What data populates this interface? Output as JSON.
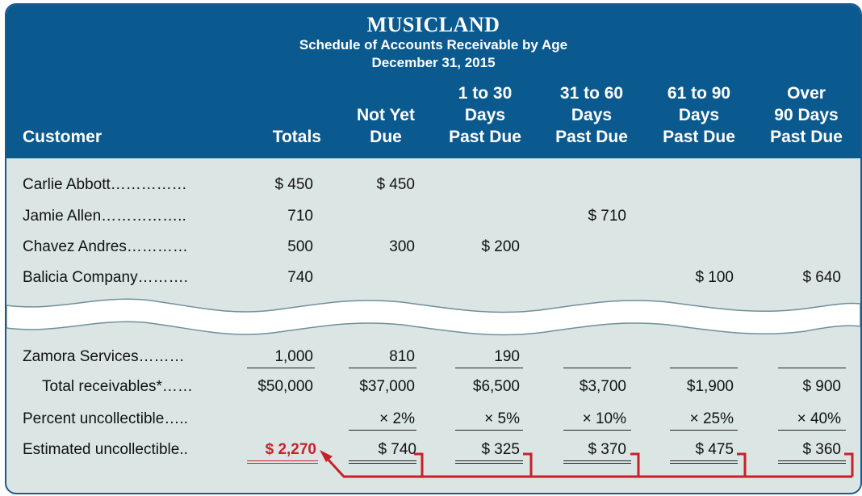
{
  "header": {
    "title": "MUSICLAND",
    "subtitle": "Schedule of Accounts Receivable by Age",
    "date": "December 31, 2015"
  },
  "columns": [
    {
      "id": "customer",
      "lines": [
        "Customer"
      ]
    },
    {
      "id": "totals",
      "lines": [
        "Totals"
      ]
    },
    {
      "id": "not_yet_due",
      "lines": [
        "Not Yet",
        "Due"
      ]
    },
    {
      "id": "d1_30",
      "lines": [
        "1 to 30",
        "Days",
        "Past Due"
      ]
    },
    {
      "id": "d31_60",
      "lines": [
        "31 to 60",
        "Days",
        "Past Due"
      ]
    },
    {
      "id": "d61_90",
      "lines": [
        "61 to 90",
        "Days",
        "Past Due"
      ]
    },
    {
      "id": "over90",
      "lines": [
        "Over",
        "90 Days",
        "Past Due"
      ]
    }
  ],
  "rows": [
    {
      "name": "Carlie Abbott……………",
      "totals": "$    450",
      "not_yet_due": "$    450",
      "d1_30": "",
      "d31_60": "",
      "d61_90": "",
      "over90": ""
    },
    {
      "name": "Jamie Allen……………..",
      "totals": "710",
      "not_yet_due": "",
      "d1_30": "",
      "d31_60": "$  710",
      "d61_90": "",
      "over90": ""
    },
    {
      "name": "Chavez Andres…………",
      "totals": "500",
      "not_yet_due": "300",
      "d1_30": "$  200",
      "d31_60": "",
      "d61_90": "",
      "over90": ""
    },
    {
      "name": "Balicia Company……….",
      "totals": "740",
      "not_yet_due": "",
      "d1_30": "",
      "d31_60": "",
      "d61_90": "$  100",
      "over90": "$  640"
    }
  ],
  "zamora": {
    "name": "Zamora Services………",
    "totals": "1,000",
    "not_yet_due": "810",
    "d1_30": "190"
  },
  "total_receivables": {
    "name": "Total receivables*……",
    "totals": "$50,000",
    "not_yet_due": "$37,000",
    "d1_30": "$6,500",
    "d31_60": "$3,700",
    "d61_90": "$1,900",
    "over90": "$  900"
  },
  "percent_uncollectible": {
    "name": "Percent uncollectible…..",
    "not_yet_due": "× 2%",
    "d1_30": "× 5%",
    "d31_60": "× 10%",
    "d61_90": "× 25%",
    "over90": "× 40%"
  },
  "estimated_uncollectible": {
    "name": "Estimated uncollectible..",
    "totals": "$  2,270",
    "not_yet_due": "$     740",
    "d1_30": "$   325",
    "d31_60": "$   370",
    "d61_90": "$   475",
    "over90": "$   360"
  },
  "colors": {
    "header_bg": "#0b5a8f",
    "body_bg": "#dbe6e4",
    "accent_red": "#c8202a"
  }
}
